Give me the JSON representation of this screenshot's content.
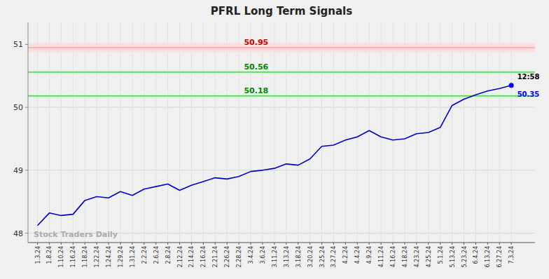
{
  "chart_data": {
    "type": "line",
    "title": "PFRL Long Term Signals",
    "watermark": "Stock Traders Daily",
    "background_color": "#f0f0f0",
    "color": "#0000cc",
    "grid": true,
    "ylim": [
      47.85,
      51.35
    ],
    "yticks": [
      48,
      49,
      50,
      51
    ],
    "categories": [
      "1.3.24",
      "1.8.24",
      "1.10.24",
      "1.16.24",
      "1.18.24",
      "1.22.24",
      "1.24.24",
      "1.29.24",
      "1.31.24",
      "2.2.24",
      "2.6.24",
      "2.8.24",
      "2.12.24",
      "2.14.24",
      "2.16.24",
      "2.21.24",
      "2.26.24",
      "2.28.24",
      "3.4.24",
      "3.6.24",
      "3.11.24",
      "3.13.24",
      "3.18.24",
      "3.20.24",
      "3.25.24",
      "3.27.24",
      "4.2.24",
      "4.4.24",
      "4.9.24",
      "4.11.24",
      "4.16.24",
      "4.18.24",
      "4.23.24",
      "4.25.24",
      "5.1.24",
      "5.13.24",
      "5.23.24",
      "6.4.24",
      "6.13.24",
      "6.27.24",
      "7.3.24"
    ],
    "values": [
      48.12,
      48.32,
      48.28,
      48.3,
      48.52,
      48.58,
      48.56,
      48.66,
      48.6,
      48.7,
      48.74,
      48.78,
      48.68,
      48.76,
      48.82,
      48.88,
      48.86,
      48.9,
      48.98,
      49.0,
      49.03,
      49.1,
      49.08,
      49.18,
      49.38,
      49.4,
      49.48,
      49.53,
      49.63,
      49.53,
      49.48,
      49.5,
      49.58,
      49.6,
      49.68,
      50.03,
      50.13,
      50.2,
      50.26,
      50.3,
      50.35
    ],
    "reference_lines": [
      {
        "value": 50.95,
        "half_width": 0.07,
        "color": "#ff9999",
        "fill_color": "#ffdddd",
        "label_color": "#cc0000"
      },
      {
        "value": 50.56,
        "half_width": 0.025,
        "color": "#44bb44",
        "fill_color": "#ccffcc",
        "label_color": "#008800"
      },
      {
        "value": 50.18,
        "half_width": 0.025,
        "color": "#44bb44",
        "fill_color": "#ccffcc",
        "label_color": "#008800"
      }
    ],
    "last_point": {
      "time": "12:58",
      "value": 50.35,
      "color": "#0000ff"
    }
  }
}
